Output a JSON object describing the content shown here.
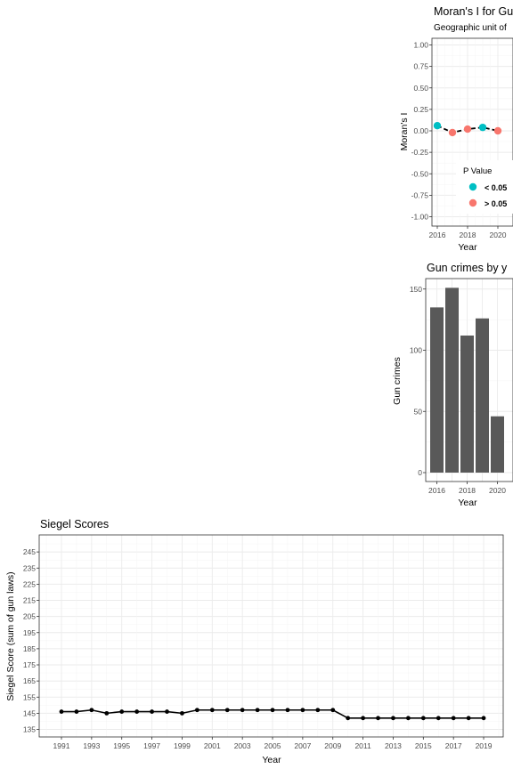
{
  "chart_data": [
    {
      "id": "morans",
      "type": "line",
      "title": "Moran's I for Gu",
      "subtitle": "Geographic unit of",
      "xlabel": "Year",
      "ylabel": "Moran's I",
      "x": [
        2016,
        2017,
        2018,
        2019,
        2020
      ],
      "values": [
        0.06,
        -0.02,
        0.02,
        0.04,
        0.0
      ],
      "point_class": [
        "< 0.05",
        "> 0.05",
        "> 0.05",
        "< 0.05",
        "> 0.05"
      ],
      "xlim": [
        2016,
        2020
      ],
      "xticks": [
        "2016",
        "2018",
        "2020"
      ],
      "ylim": [
        -1,
        1
      ],
      "yticks": [
        "1.00",
        "0.75",
        "0.50",
        "0.25",
        "0.00",
        "-0.25",
        "-0.50",
        "-0.75",
        "-1.00"
      ],
      "grid": true,
      "legend": {
        "title": "P Value",
        "placement": "right",
        "entries": [
          {
            "label": "< 0.05",
            "color": "#00bfc4"
          },
          {
            "label": "> 0.05",
            "color": "#f8766d"
          }
        ]
      }
    },
    {
      "id": "guncrimes",
      "type": "bar",
      "title": "Gun crimes by y",
      "xlabel": "Year",
      "ylabel": "Gun crimes",
      "categories": [
        "2016",
        "2017",
        "2018",
        "2019",
        "2020"
      ],
      "values": [
        135,
        151,
        112,
        126,
        46
      ],
      "xticks": [
        "2016",
        "2018",
        "2020"
      ],
      "yticks": [
        "150",
        "100",
        "50",
        "0"
      ],
      "ylim": [
        0,
        160
      ],
      "bar_color": "#595959",
      "grid": true
    },
    {
      "id": "siegel",
      "type": "line",
      "title": "Siegel Scores",
      "xlabel": "Year",
      "ylabel": "Siegel Score (sum of gun laws)",
      "x": [
        1991,
        1992,
        1993,
        1994,
        1995,
        1996,
        1997,
        1998,
        1999,
        2000,
        2001,
        2002,
        2003,
        2004,
        2005,
        2006,
        2007,
        2008,
        2009,
        2010,
        2011,
        2012,
        2013,
        2014,
        2015,
        2016,
        2017,
        2018,
        2019
      ],
      "values": [
        146,
        146,
        147,
        145,
        146,
        146,
        146,
        146,
        145,
        147,
        147,
        147,
        147,
        147,
        147,
        147,
        147,
        147,
        147,
        142,
        142,
        142,
        142,
        142,
        142,
        142,
        142,
        142,
        142
      ],
      "xticks": [
        "1991",
        "1993",
        "1995",
        "1997",
        "1999",
        "2001",
        "2003",
        "2005",
        "2007",
        "2009",
        "2011",
        "2013",
        "2015",
        "2017",
        "2019"
      ],
      "yticks": [
        "245",
        "235",
        "225",
        "215",
        "205",
        "195",
        "185",
        "175",
        "165",
        "155",
        "145",
        "135"
      ],
      "ylim": [
        131,
        250
      ],
      "grid": true
    }
  ]
}
